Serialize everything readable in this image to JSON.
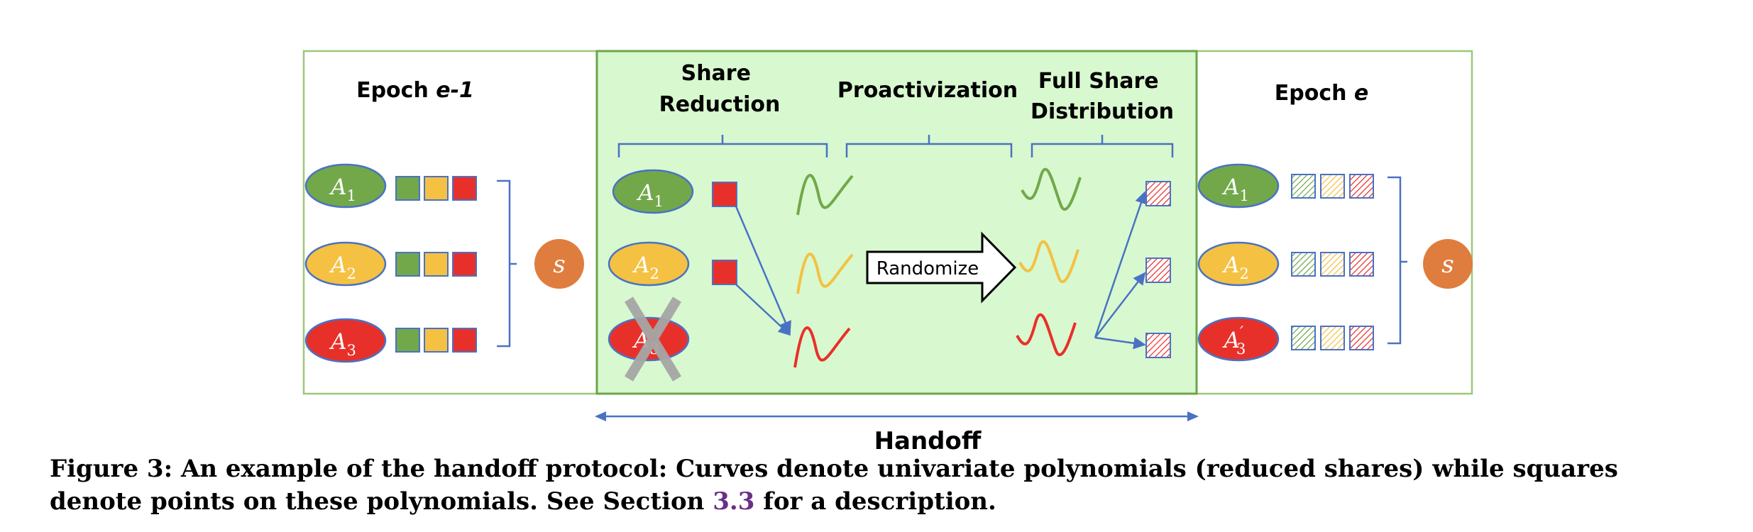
{
  "colors": {
    "green": "#72a84a",
    "yellow": "#f4c142",
    "red": "#e8302a",
    "orange": "#df7d3e",
    "blue": "#4a72c4",
    "panel_border": "#9cc87a",
    "handoff_fill": "#d8f8cf",
    "handoff_border": "#6ba54b",
    "caption_link": "#6b2f86"
  },
  "epoch_left": {
    "title_prefix": "Epoch ",
    "title_var": "e-1",
    "servers": [
      {
        "label": "A",
        "sub": "1",
        "prime": ""
      },
      {
        "label": "A",
        "sub": "2",
        "prime": ""
      },
      {
        "label": "A",
        "sub": "3",
        "prime": ""
      }
    ],
    "secret": "s"
  },
  "handoff": {
    "phases": [
      {
        "line1": "Share",
        "line2": "Reduction"
      },
      {
        "line1": "Proactivization",
        "line2": ""
      },
      {
        "line1": "Full Share",
        "line2": "Distribution"
      }
    ],
    "servers": [
      {
        "label": "A",
        "sub": "1",
        "prime": ""
      },
      {
        "label": "A",
        "sub": "2",
        "prime": ""
      },
      {
        "label": "A",
        "sub": "3",
        "prime": ""
      }
    ],
    "randomize_label": "Randomize",
    "arrow_label": "Handoff"
  },
  "epoch_right": {
    "title_prefix": "Epoch ",
    "title_var": "e",
    "servers": [
      {
        "label": "A",
        "sub": "1",
        "prime": ""
      },
      {
        "label": "A",
        "sub": "2",
        "prime": ""
      },
      {
        "label": "A",
        "sub": "3",
        "prime": "′"
      }
    ],
    "secret": "s"
  },
  "caption": {
    "text_before": "Figure 3: An example of the handoff protocol: Curves denote univariate polynomials (reduced shares) while squares denote points on these polynomials. See Section ",
    "link": "3.3",
    "text_after": " for a description."
  }
}
